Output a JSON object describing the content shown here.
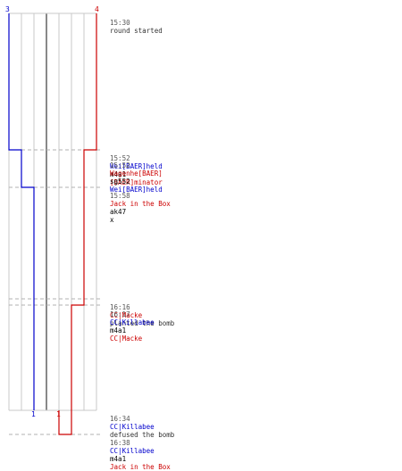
{
  "colors": {
    "blue_team": "#0000cc",
    "red_team": "#cc0000",
    "grid": "#c8c8c8",
    "center": "#888888",
    "time": "#555555",
    "verb": "#333333",
    "dash": "#b0b0b0"
  },
  "counts": {
    "blue_start": "3",
    "red_start": "4",
    "blue_end": "1",
    "red_end": "1"
  },
  "events": [
    {
      "time": "15:30",
      "verb": "round started"
    },
    {
      "time": "15:52",
      "actor": "Wei[BAER]held",
      "actor_team": "blue",
      "weapon": "m4a1",
      "victim": "[BAER]minator",
      "victim_team": "red"
    },
    {
      "time": "15:52",
      "actor": "Wagenhe[BAER]",
      "actor_team": "red",
      "weapon": "sg552",
      "victim": "Wei[BAER]held",
      "victim_team": "blue"
    },
    {
      "time": "15:58",
      "actor": "Jack in the Box",
      "actor_team": "red",
      "weapon": "ak47",
      "suffix": "x"
    },
    {
      "time": "16:16",
      "actor": "CC|Macke",
      "actor_team": "red",
      "verb": "planted the bomb"
    },
    {
      "time": "16:17",
      "actor": "CC|Killabee",
      "actor_team": "blue",
      "weapon": "m4a1",
      "victim": "CC|Macke",
      "victim_team": "red"
    },
    {
      "time": "16:34",
      "actor": "CC|Killabee",
      "actor_team": "blue",
      "verb": "defused the bomb"
    },
    {
      "time": "16:38",
      "actor": "CC|Killabee",
      "actor_team": "blue",
      "weapon": "m4a1",
      "victim": "Jack in the Box",
      "victim_team": "red"
    }
  ]
}
